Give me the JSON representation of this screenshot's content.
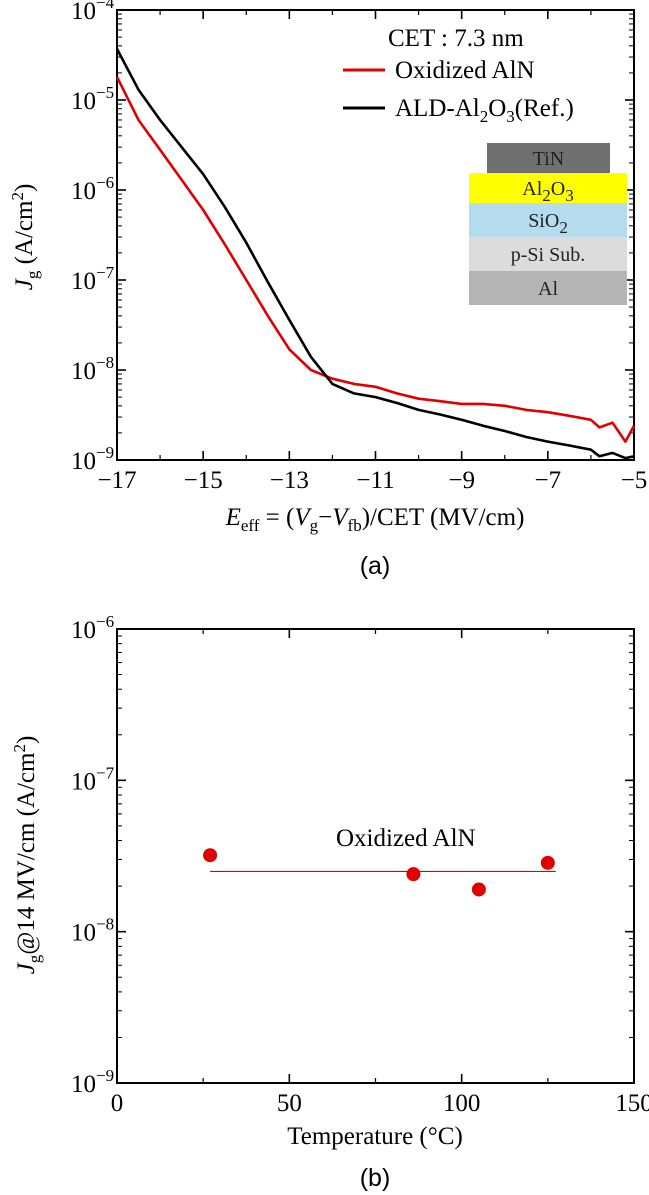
{
  "chart_data": [
    {
      "type": "line",
      "panel_label": "(a)",
      "annotation": "CET : 7.3 nm",
      "xlabel": {
        "E": "E",
        "eff": "eff",
        "eq": " = (",
        "V1": "V",
        "g": "g",
        "minus": "−",
        "V2": "V",
        "fb": "fb",
        "tail": ")/CET (MV/cm)"
      },
      "ylabel": {
        "J": "J",
        "g": "g",
        "unit": " (A/cm",
        "sup": "2",
        "close": ")"
      },
      "xlim": [
        -17,
        -5
      ],
      "ylim": [
        1e-09,
        0.0001
      ],
      "yscale": "log",
      "x_ticks": [
        -17,
        -15,
        -13,
        -11,
        -9,
        -7,
        -5
      ],
      "x_tick_labels": [
        "−17",
        "−15",
        "−13",
        "−11",
        "−9",
        "−7",
        "−5"
      ],
      "y_ticks": [
        {
          "value": 0.0001,
          "base": "10",
          "exp": "−4"
        },
        {
          "value": 1e-05,
          "base": "10",
          "exp": "−5"
        },
        {
          "value": 1e-06,
          "base": "10",
          "exp": "−6"
        },
        {
          "value": 1e-07,
          "base": "10",
          "exp": "−7"
        },
        {
          "value": 1e-08,
          "base": "10",
          "exp": "−8"
        },
        {
          "value": 1e-09,
          "base": "10",
          "exp": "−9"
        }
      ],
      "legend": {
        "items": [
          {
            "key": "oxidized",
            "parts": [
              {
                "t": "Oxidized AlN"
              }
            ]
          },
          {
            "key": "ald",
            "parts": [
              {
                "t": "ALD-Al"
              },
              {
                "t": "2",
                "sub": true
              },
              {
                "t": "O"
              },
              {
                "t": "3",
                "sub": true
              },
              {
                "t": "(Ref.)"
              }
            ]
          }
        ]
      },
      "stack": [
        {
          "parts": [
            {
              "t": "TiN"
            }
          ],
          "color": "#707070"
        },
        {
          "parts": [
            {
              "t": "Al"
            },
            {
              "t": "2",
              "sub": true
            },
            {
              "t": "O"
            },
            {
              "t": "3",
              "sub": true
            }
          ],
          "color": "#ffff00"
        },
        {
          "parts": [
            {
              "t": "SiO"
            },
            {
              "t": "2",
              "sub": true
            }
          ],
          "color": "#b4dcee"
        },
        {
          "parts": [
            {
              "t": "p-Si Sub."
            }
          ],
          "color": "#dcdcdc"
        },
        {
          "parts": [
            {
              "t": "Al"
            }
          ],
          "color": "#b4b4b4"
        }
      ],
      "series": [
        {
          "name": "Oxidized AlN",
          "color": "#e00000",
          "x": [
            -17,
            -16.5,
            -16,
            -15.5,
            -15,
            -14.5,
            -14,
            -13.5,
            -13,
            -12.5,
            -12,
            -11.5,
            -11,
            -10.5,
            -10,
            -9.5,
            -9,
            -8.5,
            -8,
            -7.5,
            -7,
            -6.5,
            -6,
            -5.8,
            -5.5,
            -5.2,
            -5
          ],
          "y": [
            1.8e-05,
            6e-06,
            2.8e-06,
            1.3e-06,
            6e-07,
            2.5e-07,
            1e-07,
            4e-08,
            1.7e-08,
            1e-08,
            8e-09,
            7e-09,
            6.5e-09,
            5.5e-09,
            4.8e-09,
            4.5e-09,
            4.2e-09,
            4.2e-09,
            4e-09,
            3.6e-09,
            3.4e-09,
            3.1e-09,
            2.8e-09,
            2.3e-09,
            2.6e-09,
            1.6e-09,
            2.4e-09
          ]
        },
        {
          "name": "ALD-Al2O3(Ref.)",
          "color": "#000000",
          "x": [
            -17,
            -16.5,
            -16,
            -15.5,
            -15,
            -14.5,
            -14,
            -13.5,
            -13,
            -12.5,
            -12,
            -11.5,
            -11,
            -10.5,
            -10,
            -9.5,
            -9,
            -8.5,
            -8,
            -7.5,
            -7,
            -6.5,
            -6,
            -5.8,
            -5.5,
            -5.2,
            -5
          ],
          "y": [
            3.7e-05,
            1.3e-05,
            6e-06,
            3e-06,
            1.5e-06,
            6.5e-07,
            2.6e-07,
            9.5e-08,
            3.6e-08,
            1.4e-08,
            7e-09,
            5.5e-09,
            5e-09,
            4.3e-09,
            3.6e-09,
            3.2e-09,
            2.8e-09,
            2.4e-09,
            2.1e-09,
            1.8e-09,
            1.6e-09,
            1.45e-09,
            1.3e-09,
            1.1e-09,
            1.2e-09,
            1.05e-09,
            1.1e-09
          ]
        }
      ]
    },
    {
      "type": "scatter",
      "panel_label": "(b)",
      "xlabel": {
        "text": "Temperature (",
        "deg": "°C",
        "close": ")"
      },
      "ylabel": {
        "J": "J",
        "g": "g",
        "tail": "@14 MV/cm (A/cm",
        "sup": "2",
        "close": ")"
      },
      "xlim": [
        0,
        150
      ],
      "ylim": [
        1e-09,
        1e-06
      ],
      "yscale": "log",
      "x_ticks": [
        0,
        50,
        100,
        150
      ],
      "x_tick_labels": [
        "0",
        "50",
        "100",
        "150"
      ],
      "y_ticks": [
        {
          "value": 1e-06,
          "base": "10",
          "exp": "−6"
        },
        {
          "value": 1e-07,
          "base": "10",
          "exp": "−7"
        },
        {
          "value": 1e-08,
          "base": "10",
          "exp": "−8"
        },
        {
          "value": 1e-09,
          "base": "10",
          "exp": "−9"
        }
      ],
      "series_label": "Oxidized AlN",
      "color": "#e00000",
      "points": [
        {
          "x": 27,
          "y": 3.2e-08
        },
        {
          "x": 86,
          "y": 2.4e-08
        },
        {
          "x": 105,
          "y": 1.9e-08
        },
        {
          "x": 125,
          "y": 2.85e-08
        }
      ],
      "fit_line": {
        "x": [
          27,
          125
        ],
        "y": [
          2.5e-08,
          2.5e-08
        ]
      }
    }
  ]
}
